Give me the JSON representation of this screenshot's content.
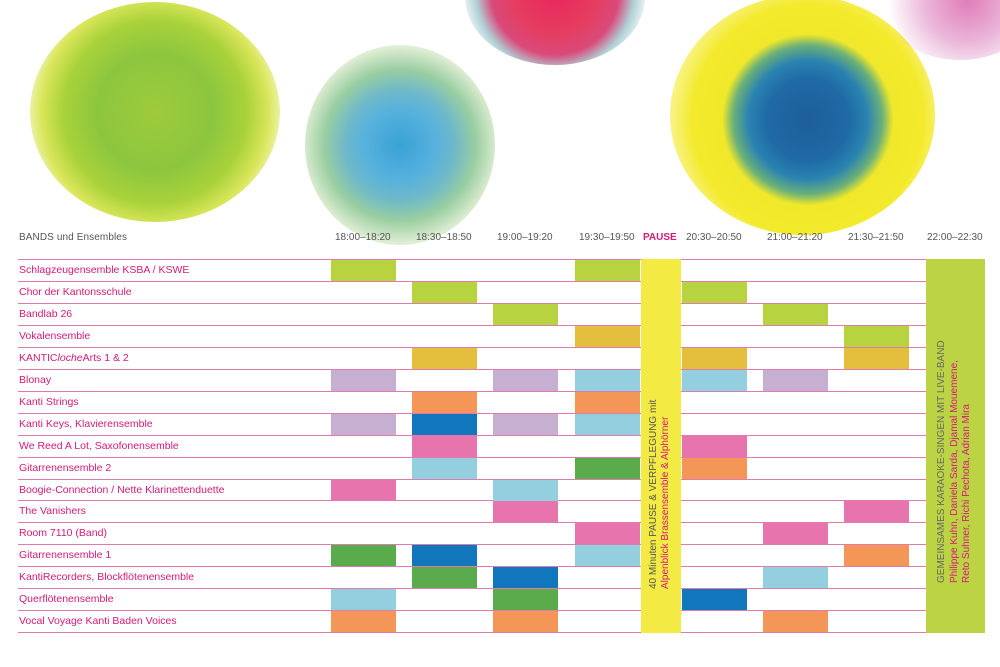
{
  "header": {
    "bands_label": "BANDS und Ensembles",
    "time_slots": [
      "18:00–18:20",
      "18:30–18:50",
      "19:00–19:20",
      "19:30–19:50",
      "PAUSE",
      "20:30–20:50",
      "21:00–21:20",
      "21:30–21:50",
      "22:00–22:30"
    ]
  },
  "rows": [
    {
      "name": "Schlagzeugensemble KSBA / KSWE",
      "name_italic": "",
      "name_suffix": "",
      "cells": {
        "0": "lime",
        "3": "lime"
      }
    },
    {
      "name": "Chor der Kantonsschule",
      "name_italic": "",
      "name_suffix": "",
      "cells": {
        "1": "lime",
        "5": "lime"
      }
    },
    {
      "name": "Bandlab 26",
      "name_italic": "",
      "name_suffix": "",
      "cells": {
        "2": "lime",
        "6": "lime"
      }
    },
    {
      "name": "Vokalensemble",
      "name_italic": "",
      "name_suffix": "",
      "cells": {
        "3": "mustard",
        "7": "lime"
      }
    },
    {
      "name": "KANTIC",
      "name_italic": "loche",
      "name_suffix": "Arts 1 & 2",
      "cells": {
        "1": "mustard",
        "5": "mustard",
        "7": "mustard"
      }
    },
    {
      "name": "Blonay",
      "name_italic": "",
      "name_suffix": "",
      "cells": {
        "0": "lilac",
        "2": "lilac",
        "3": "lightblue",
        "5": "lightblue",
        "6": "lilac"
      }
    },
    {
      "name": "Kanti Strings",
      "name_italic": "",
      "name_suffix": "",
      "cells": {
        "1": "orange",
        "3": "orange"
      }
    },
    {
      "name": "Kanti Keys, Klavierensemble",
      "name_italic": "",
      "name_suffix": "",
      "cells": {
        "0": "lilac",
        "1": "blue",
        "2": "lilac",
        "3": "lightblue"
      }
    },
    {
      "name": "We Reed A Lot, Saxofonensemble",
      "name_italic": "",
      "name_suffix": "",
      "cells": {
        "1": "pink",
        "5": "pink"
      }
    },
    {
      "name": "Gitarrenensemble 2",
      "name_italic": "",
      "name_suffix": "",
      "cells": {
        "1": "lightblue",
        "3": "green",
        "5": "orange"
      }
    },
    {
      "name": "Boogie-Connection / Nette Klarinettenduette",
      "name_italic": "",
      "name_suffix": "",
      "cells": {
        "0": "pink",
        "2": "lightblue"
      }
    },
    {
      "name": "The Vanishers",
      "name_italic": "",
      "name_suffix": "",
      "cells": {
        "2": "pink",
        "7": "pink"
      }
    },
    {
      "name": "Room 7110 (Band)",
      "name_italic": "",
      "name_suffix": "",
      "cells": {
        "3": "pink",
        "6": "pink"
      }
    },
    {
      "name": "Gitarrenensemble 1",
      "name_italic": "",
      "name_suffix": "",
      "cells": {
        "0": "green",
        "1": "blue",
        "3": "lightblue",
        "7": "orange"
      }
    },
    {
      "name": "KantiRecorders, Blockflötenensemble",
      "name_italic": "",
      "name_suffix": "",
      "cells": {
        "1": "green",
        "2": "blue",
        "6": "lightblue"
      }
    },
    {
      "name": "Querflötenensemble",
      "name_italic": "",
      "name_suffix": "",
      "cells": {
        "0": "lightblue",
        "2": "green",
        "5": "blue"
      }
    },
    {
      "name": "Vocal Voyage Kanti Baden Voices",
      "name_italic": "",
      "name_suffix": "",
      "cells": {
        "0": "orange",
        "2": "orange",
        "6": "orange"
      }
    }
  ],
  "pause_column": {
    "line1": "40 Minuten PAUSE & VERPFLEGUNG mit",
    "line2": "Alpenblick Brassensemble & Alphörner"
  },
  "final_column": {
    "line1": "GEMEINSAMES KARAOKE-SINGEN MIT LIVE-BAND",
    "line2": "Philippe Kuhn, Daniela Sarda, Djamal Mouemene,",
    "line3": "Reto Suhner, Richi Pechota, Adrian Mira"
  },
  "colors": {
    "lime": "#b7d33f",
    "mustard": "#e3bf3d",
    "lilac": "#c6afd1",
    "lightblue": "#93cfdf",
    "orange": "#f39657",
    "blue": "#1176bb",
    "pink": "#e774ad",
    "green": "#5aab4b",
    "pause_yellow": "#f3eb43",
    "final_green": "#bcd344",
    "accent_magenta": "#d6197a",
    "grid_line": "#e07ab0"
  },
  "decoration": {
    "blobs": [
      "green-yellow-watercolor",
      "blue-green-splash",
      "red-magenta-watercolor",
      "yellow-blue-watercolor",
      "magenta-corner-watercolor"
    ]
  }
}
